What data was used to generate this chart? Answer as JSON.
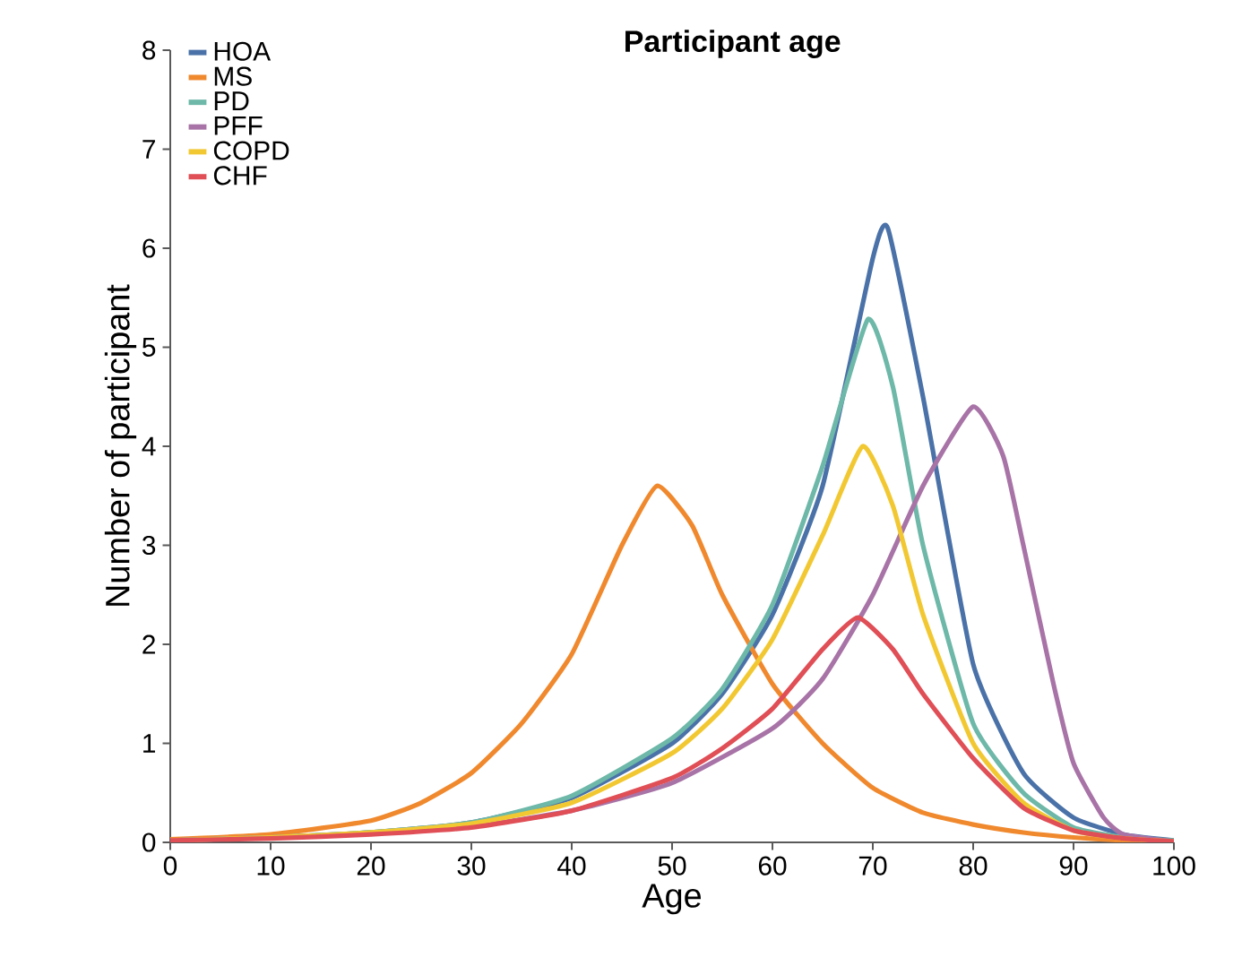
{
  "chart_data": {
    "type": "line",
    "title": "Participant age",
    "xlabel": "Age",
    "ylabel": "Number of participant",
    "xlim": [
      0,
      100
    ],
    "ylim": [
      0,
      8
    ],
    "xticks": [
      0,
      10,
      20,
      30,
      40,
      50,
      60,
      70,
      80,
      90,
      100
    ],
    "yticks": [
      0,
      1,
      2,
      3,
      4,
      5,
      6,
      7,
      8
    ],
    "grid": false,
    "legend": "top left",
    "marker": "none",
    "line_style": "solid",
    "series": [
      {
        "name": "HOA",
        "color": "#4a72a8",
        "x": [
          0,
          10,
          20,
          30,
          40,
          50,
          55,
          60,
          65,
          70,
          71.5,
          75,
          80,
          85,
          90,
          95,
          100
        ],
        "values": [
          0.02,
          0.05,
          0.1,
          0.2,
          0.45,
          1.0,
          1.5,
          2.3,
          3.6,
          5.9,
          6.2,
          4.5,
          1.8,
          0.7,
          0.25,
          0.08,
          0.02
        ]
      },
      {
        "name": "MS",
        "color": "#f0892e",
        "x": [
          0,
          10,
          20,
          25,
          30,
          35,
          40,
          45,
          48.5,
          52,
          55,
          60,
          65,
          70,
          75,
          80,
          85,
          90,
          95,
          100
        ],
        "values": [
          0.03,
          0.08,
          0.22,
          0.4,
          0.7,
          1.2,
          1.9,
          3.0,
          3.6,
          3.2,
          2.5,
          1.6,
          1.0,
          0.55,
          0.3,
          0.18,
          0.1,
          0.05,
          0.02,
          0.01
        ]
      },
      {
        "name": "PD",
        "color": "#6db8a8",
        "x": [
          0,
          10,
          20,
          30,
          40,
          50,
          55,
          60,
          65,
          69.5,
          72,
          75,
          80,
          85,
          90,
          95,
          100
        ],
        "values": [
          0.02,
          0.05,
          0.1,
          0.2,
          0.47,
          1.05,
          1.55,
          2.4,
          3.8,
          5.28,
          4.6,
          3.0,
          1.2,
          0.5,
          0.15,
          0.05,
          0.02
        ]
      },
      {
        "name": "PFF",
        "color": "#a873a6",
        "x": [
          0,
          10,
          20,
          30,
          40,
          50,
          60,
          65,
          70,
          75,
          80,
          83,
          85,
          88,
          90,
          93,
          95,
          100
        ],
        "values": [
          0.02,
          0.05,
          0.09,
          0.16,
          0.32,
          0.6,
          1.15,
          1.65,
          2.5,
          3.6,
          4.4,
          3.9,
          3.0,
          1.6,
          0.8,
          0.25,
          0.08,
          0.01
        ]
      },
      {
        "name": "COPD",
        "color": "#f2c832",
        "x": [
          0,
          10,
          20,
          30,
          40,
          50,
          55,
          60,
          65,
          69,
          72,
          75,
          80,
          85,
          90,
          95,
          100
        ],
        "values": [
          0.02,
          0.05,
          0.1,
          0.19,
          0.4,
          0.9,
          1.35,
          2.05,
          3.1,
          4.0,
          3.4,
          2.3,
          1.0,
          0.4,
          0.12,
          0.04,
          0.01
        ]
      },
      {
        "name": "CHF",
        "color": "#e04e56",
        "x": [
          0,
          10,
          20,
          30,
          40,
          50,
          55,
          60,
          65,
          68.5,
          72,
          75,
          80,
          85,
          90,
          95,
          100
        ],
        "values": [
          0.02,
          0.04,
          0.08,
          0.15,
          0.32,
          0.65,
          0.95,
          1.35,
          1.95,
          2.27,
          1.95,
          1.5,
          0.85,
          0.35,
          0.12,
          0.04,
          0.01
        ]
      }
    ]
  }
}
